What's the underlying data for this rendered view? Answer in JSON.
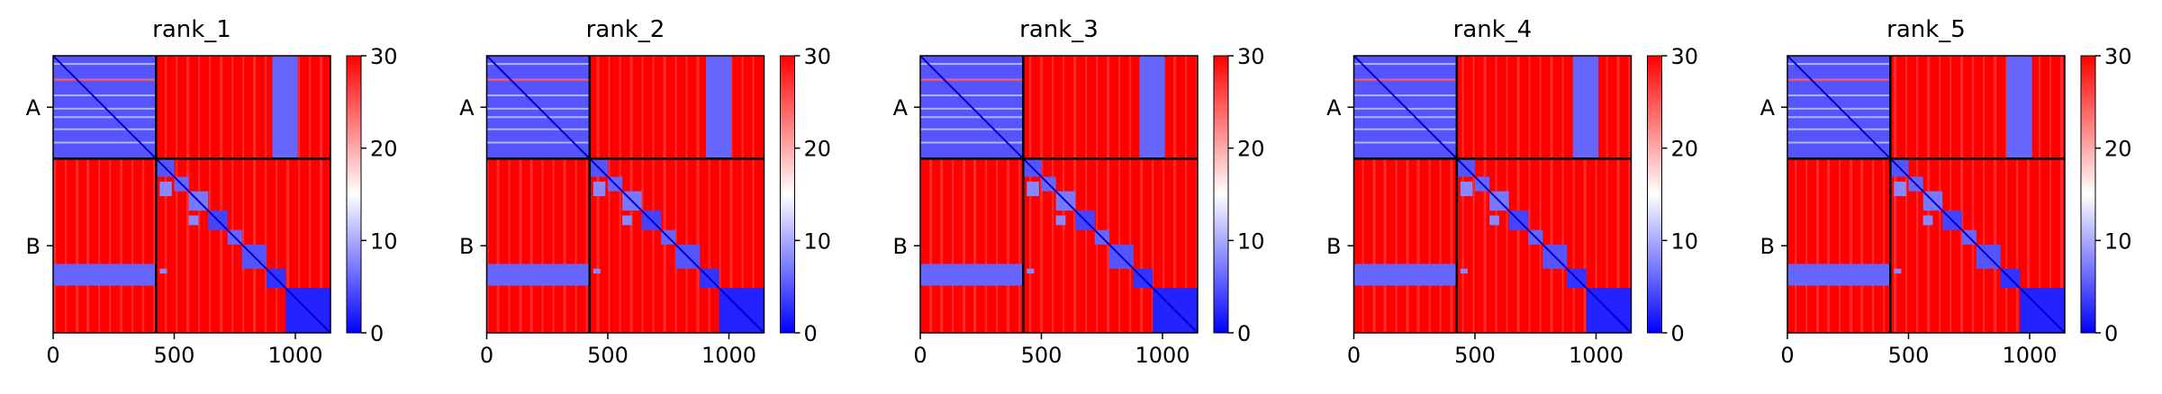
{
  "chart_data": {
    "type": "heatmap",
    "colormap": {
      "low": "#0000ff",
      "mid": "#ffffff",
      "high": "#ff0000",
      "range": [
        0,
        30
      ]
    },
    "colorbar_ticks": [
      0,
      10,
      20,
      30
    ],
    "x_ticks": [
      0,
      500,
      1000
    ],
    "x_range": [
      0,
      1145
    ],
    "chains": [
      {
        "name": "A",
        "start": 0,
        "end": 425
      },
      {
        "name": "B",
        "start": 425,
        "end": 1145
      }
    ],
    "panels": [
      {
        "title": "rank_1"
      },
      {
        "title": "rank_2"
      },
      {
        "title": "rank_3"
      },
      {
        "title": "rank_4"
      },
      {
        "title": "rank_5"
      }
    ],
    "blocks": {
      "A_self": 5,
      "B_self_domains": [
        {
          "range": [
            425,
            500
          ],
          "value": 5
        },
        {
          "range": [
            500,
            560
          ],
          "value": 6
        },
        {
          "range": [
            560,
            640
          ],
          "value": 7
        },
        {
          "range": [
            640,
            720
          ],
          "value": 4
        },
        {
          "range": [
            720,
            780
          ],
          "value": 6
        },
        {
          "range": [
            780,
            880
          ],
          "value": 5
        },
        {
          "range": [
            880,
            960
          ],
          "value": 3
        },
        {
          "range": [
            960,
            1145
          ],
          "value": 2
        }
      ],
      "A_B_interface": [
        {
          "rows": [
            860,
            950
          ],
          "cols": [
            0,
            425
          ],
          "value": 6
        },
        {
          "cols": [
            905,
            1010
          ],
          "rows": [
            0,
            425
          ],
          "value": 6
        }
      ],
      "background": 30
    }
  }
}
